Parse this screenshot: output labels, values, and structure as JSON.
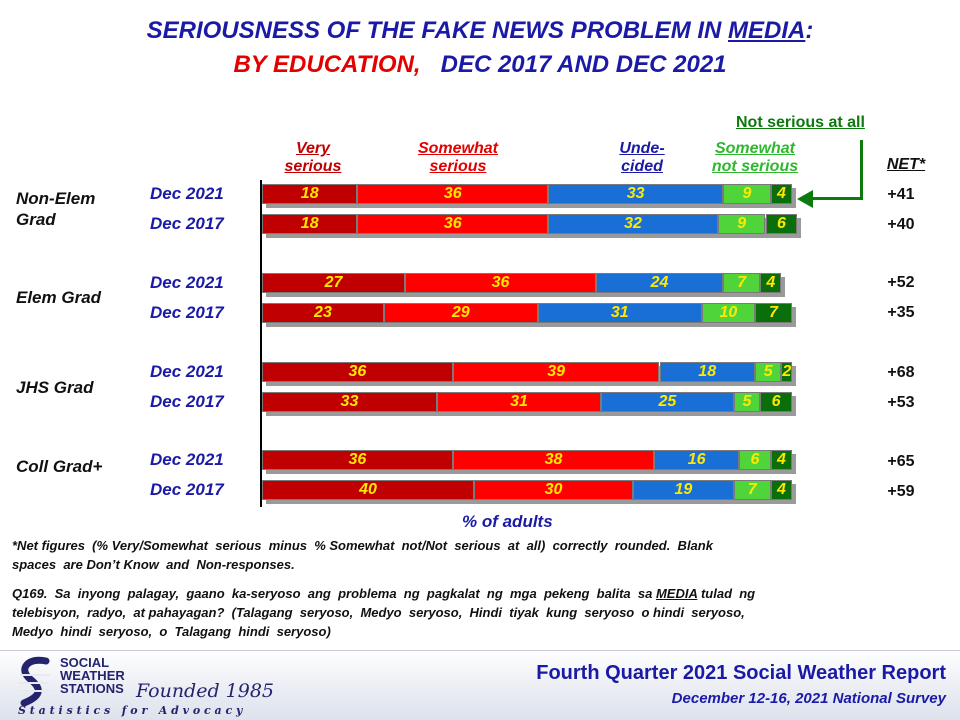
{
  "title": {
    "line1_main": "SERIOUSNESS  OF  THE  FAKE  NEWS  PROBLEM  IN ",
    "line1_media": "MEDIA",
    "line1_colon": ":",
    "line2_red": "BY EDUCATION,",
    "line2_blue": "DEC 2017 AND DEC 2021"
  },
  "headers": {
    "very_1": "Very",
    "very_2": "serious",
    "somewhat_1": "Somewhat",
    "somewhat_2": "serious",
    "undecided_1": "Unde-",
    "undecided_2": "cided",
    "snot_1": "Somewhat",
    "snot_2": "not serious",
    "not_at_all": "Not serious at all",
    "net": "NET*"
  },
  "colors": {
    "very": "#c00000",
    "somewhat": "#ff0000",
    "undecided": "#1a6fd6",
    "somewhat_not": "#4fd43a",
    "not_at_all": "#0a6e0a",
    "label": "#ffe800"
  },
  "chart_data": {
    "type": "bar",
    "orientation": "horizontal-stacked",
    "xlabel": "% of adults",
    "series_order": [
      "Very serious",
      "Somewhat serious",
      "Undecided",
      "Somewhat not serious",
      "Not serious at all"
    ],
    "groups": [
      {
        "name_1": "Non-Elem",
        "name_2": "Grad",
        "rows": [
          {
            "year": "Dec 2021",
            "values": [
              18,
              36,
              33,
              9,
              4
            ],
            "net": "+41"
          },
          {
            "year": "Dec 2017",
            "values": [
              18,
              36,
              32,
              9,
              6
            ],
            "net": "+40"
          }
        ]
      },
      {
        "name_1": "Elem Grad",
        "name_2": "",
        "rows": [
          {
            "year": "Dec 2021",
            "values": [
              27,
              36,
              24,
              7,
              4
            ],
            "net": "+52"
          },
          {
            "year": "Dec 2017",
            "values": [
              23,
              29,
              31,
              10,
              7
            ],
            "net": "+35"
          }
        ]
      },
      {
        "name_1": "JHS Grad",
        "name_2": "",
        "rows": [
          {
            "year": "Dec 2021",
            "values": [
              36,
              39,
              18,
              5,
              2
            ],
            "net": "+68"
          },
          {
            "year": "Dec 2017",
            "values": [
              33,
              31,
              25,
              5,
              6
            ],
            "net": "+53"
          }
        ]
      },
      {
        "name_1": "Coll Grad+",
        "name_2": "",
        "rows": [
          {
            "year": "Dec 2021",
            "values": [
              36,
              38,
              16,
              6,
              4
            ],
            "net": "+65"
          },
          {
            "year": "Dec 2017",
            "values": [
              40,
              30,
              19,
              7,
              4
            ],
            "net": "+59"
          }
        ]
      }
    ]
  },
  "footnote": {
    "line1": "*Net figures  (% Very/Somewhat  serious  minus  % Somewhat  not/Not  serious  at  all)  correctly  rounded.  Blank",
    "line2": "spaces  are Don’t Know  and  Non-responses."
  },
  "question": {
    "line1_a": "Q169.  Sa  inyong  palagay,  gaano  ka-seryoso  ang  problema  ng  pagkalat  ng  mga  pekeng  balita  sa ",
    "line1_media": "MEDIA",
    "line1_b": " tulad  ng",
    "line2": "telebisyon,  radyo,  at pahayagan?  (Talagang  seryoso,  Medyo  seryoso,  Hindi  tiyak  kung  seryoso  o hindi  seryoso,",
    "line3": "Medyo  hindi  seryoso,  o  Talagang  hindi  seryoso)"
  },
  "footer": {
    "report": "Fourth Quarter 2021 Social Weather Report",
    "survey": "December 12-16, 2021 National Survey",
    "logo_1": "SOCIAL",
    "logo_2": "WEATHER",
    "logo_3": "STATIONS",
    "founded": "Founded 1985",
    "tagline": "S t a t i s t i c s   f o r   A d v o c a c y"
  }
}
